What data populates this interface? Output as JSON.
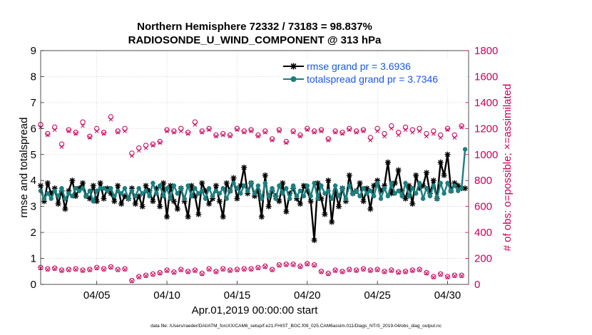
{
  "chart_data": {
    "type": "line",
    "title_line1": "Northern Hemisphere 72332 / 73183 = 98.837%",
    "title_line2": "RADIOSONDE_U_WIND_COMPONENT @ 313 hPa",
    "xlabel": "Apr.01,2019 00:00:00 start",
    "ylabel_left": "rmse and totalspread",
    "ylabel_right": "# of obs: o=possible; ×=assimilated",
    "footer": "data file: /Users/raeder/DAI/ATM_forcXX/CAM6_setup/f.e21.FHIST_BGC.f09_025.CAM6assim.011/Diags_NTrS_2019-04/obs_diag_output.nc",
    "xlim": [
      1,
      31.5
    ],
    "ylim_left": [
      0,
      9
    ],
    "ylim_right": [
      0,
      1800
    ],
    "x_ticks": [
      5,
      10,
      15,
      20,
      25,
      30
    ],
    "x_tick_labels": [
      "04/05",
      "04/10",
      "04/15",
      "04/20",
      "04/25",
      "04/30"
    ],
    "y_left_ticks": [
      "0",
      "1",
      "2",
      "3",
      "4",
      "5",
      "6",
      "7",
      "8",
      "9"
    ],
    "y_right_ticks": [
      "0",
      "200",
      "400",
      "600",
      "800",
      "1000",
      "1200",
      "1400",
      "1600",
      "1800"
    ],
    "legend": [
      {
        "label": "rmse grand pr = 3.6936",
        "color": "#000000"
      },
      {
        "label": "totalspread grand pr = 3.7346",
        "color": "#1a7f7f"
      }
    ],
    "series": [
      {
        "name": "rmse",
        "axis": "left",
        "color": "#000000",
        "x": [
          1.0,
          1.25,
          1.5,
          1.75,
          2.0,
          2.25,
          2.5,
          2.75,
          3.0,
          3.25,
          3.5,
          3.75,
          4.0,
          4.25,
          4.5,
          4.75,
          5.0,
          5.25,
          5.5,
          5.75,
          6.0,
          6.25,
          6.5,
          6.75,
          7.0,
          7.25,
          7.5,
          7.75,
          8.0,
          8.25,
          8.5,
          8.75,
          9.0,
          9.25,
          9.5,
          9.75,
          10.0,
          10.25,
          10.5,
          10.75,
          11.0,
          11.25,
          11.5,
          11.75,
          12.0,
          12.25,
          12.5,
          12.75,
          13.0,
          13.25,
          13.5,
          13.75,
          14.0,
          14.25,
          14.5,
          14.75,
          15.0,
          15.25,
          15.5,
          15.75,
          16.0,
          16.25,
          16.5,
          16.75,
          17.0,
          17.25,
          17.5,
          17.75,
          18.0,
          18.25,
          18.5,
          18.75,
          19.0,
          19.25,
          19.5,
          19.75,
          20.0,
          20.25,
          20.5,
          20.75,
          21.0,
          21.25,
          21.5,
          21.75,
          22.0,
          22.25,
          22.5,
          22.75,
          23.0,
          23.25,
          23.5,
          23.75,
          24.0,
          24.25,
          24.5,
          24.75,
          25.0,
          25.25,
          25.5,
          25.75,
          26.0,
          26.25,
          26.5,
          26.75,
          27.0,
          27.25,
          27.5,
          27.75,
          28.0,
          28.25,
          28.5,
          28.75,
          29.0,
          29.25,
          29.5,
          29.75,
          30.0,
          30.25,
          30.5,
          30.75,
          31.0,
          31.25
        ],
        "y": [
          3.8,
          3.2,
          3.9,
          3.5,
          3.7,
          3.1,
          3.6,
          2.9,
          3.6,
          4.0,
          3.4,
          3.7,
          3.9,
          3.4,
          3.3,
          3.8,
          3.2,
          3.9,
          3.3,
          3.7,
          3.5,
          3.2,
          3.8,
          3.1,
          3.4,
          3.3,
          3.7,
          3.1,
          3.4,
          3.0,
          3.8,
          3.6,
          3.2,
          3.7,
          3.0,
          3.9,
          2.6,
          3.8,
          3.2,
          2.9,
          3.7,
          3.2,
          2.6,
          3.8,
          3.4,
          2.7,
          3.9,
          3.6,
          3.1,
          3.3,
          3.8,
          3.2,
          2.6,
          3.9,
          3.6,
          4.1,
          3.3,
          3.8,
          4.5,
          3.5,
          3.9,
          3.4,
          3.6,
          2.6,
          4.2,
          3.0,
          3.6,
          3.4,
          3.2,
          3.9,
          2.8,
          3.5,
          3.7,
          3.3,
          3.1,
          3.8,
          3.6,
          3.2,
          1.7,
          3.9,
          3.3,
          2.7,
          4.0,
          2.4,
          3.6,
          3.0,
          3.7,
          3.2,
          4.2,
          3.5,
          3.6,
          3.9,
          3.2,
          3.7,
          2.9,
          3.8,
          4.0,
          3.6,
          3.8,
          4.7,
          3.5,
          3.9,
          4.4,
          3.6,
          3.3,
          3.8,
          3.1,
          4.2,
          3.7,
          3.8,
          4.3,
          3.5,
          4.0,
          3.3,
          4.7,
          4.2,
          5.0,
          3.6,
          3.9,
          3.8,
          3.7,
          3.7
        ]
      },
      {
        "name": "totalspread",
        "axis": "left",
        "color": "#1a7f7f",
        "x": [
          1.0,
          1.25,
          1.5,
          1.75,
          2.0,
          2.25,
          2.5,
          2.75,
          3.0,
          3.25,
          3.5,
          3.75,
          4.0,
          4.25,
          4.5,
          4.75,
          5.0,
          5.25,
          5.5,
          5.75,
          6.0,
          6.25,
          6.5,
          6.75,
          7.0,
          7.25,
          7.5,
          7.75,
          8.0,
          8.25,
          8.5,
          8.75,
          9.0,
          9.25,
          9.5,
          9.75,
          10.0,
          10.25,
          10.5,
          10.75,
          11.0,
          11.25,
          11.5,
          11.75,
          12.0,
          12.25,
          12.5,
          12.75,
          13.0,
          13.25,
          13.5,
          13.75,
          14.0,
          14.25,
          14.5,
          14.75,
          15.0,
          15.25,
          15.5,
          15.75,
          16.0,
          16.25,
          16.5,
          16.75,
          17.0,
          17.25,
          17.5,
          17.75,
          18.0,
          18.25,
          18.5,
          18.75,
          19.0,
          19.25,
          19.5,
          19.75,
          20.0,
          20.25,
          20.5,
          20.75,
          21.0,
          21.25,
          21.5,
          21.75,
          22.0,
          22.25,
          22.5,
          22.75,
          23.0,
          23.25,
          23.5,
          23.75,
          24.0,
          24.25,
          24.5,
          24.75,
          25.0,
          25.25,
          25.5,
          25.75,
          26.0,
          26.25,
          26.5,
          26.75,
          27.0,
          27.25,
          27.5,
          27.75,
          28.0,
          28.25,
          28.5,
          28.75,
          29.0,
          29.25,
          29.5,
          29.75,
          30.0,
          30.25,
          30.5,
          30.75,
          31.0,
          31.25
        ],
        "y": [
          3.6,
          3.3,
          3.5,
          3.3,
          3.6,
          3.4,
          3.7,
          3.3,
          3.5,
          3.4,
          3.7,
          3.6,
          3.7,
          3.4,
          3.6,
          3.2,
          3.6,
          3.7,
          3.7,
          3.6,
          3.7,
          3.4,
          3.6,
          3.5,
          3.7,
          3.3,
          3.6,
          3.4,
          3.7,
          3.5,
          3.6,
          3.4,
          3.9,
          3.5,
          3.8,
          3.4,
          3.7,
          3.3,
          3.8,
          3.5,
          3.7,
          3.3,
          3.8,
          3.4,
          3.7,
          3.5,
          3.6,
          3.3,
          3.7,
          3.4,
          3.6,
          3.5,
          3.7,
          3.3,
          3.6,
          3.9,
          3.7,
          3.5,
          3.8,
          3.6,
          3.9,
          3.5,
          3.8,
          3.3,
          3.9,
          3.4,
          3.7,
          3.3,
          3.8,
          3.5,
          3.7,
          3.3,
          3.8,
          3.4,
          3.6,
          3.4,
          3.8,
          3.4,
          3.9,
          3.3,
          3.8,
          3.5,
          3.6,
          3.3,
          3.8,
          3.4,
          3.7,
          3.3,
          3.8,
          3.5,
          3.6,
          3.4,
          3.7,
          3.5,
          3.6,
          3.4,
          3.9,
          3.3,
          3.7,
          3.4,
          3.9,
          3.5,
          3.6,
          3.4,
          3.9,
          3.4,
          3.7,
          3.5,
          3.9,
          3.3,
          3.7,
          3.4,
          3.8,
          3.3,
          3.9,
          3.5,
          3.9,
          3.6,
          3.8,
          3.6,
          3.7,
          5.2
        ]
      },
      {
        "name": "obs possible (day)",
        "axis": "right",
        "color": "#c8005a",
        "marker": "o",
        "x": [
          1.0,
          1.5,
          2.0,
          2.5,
          3.0,
          3.5,
          4.0,
          4.5,
          5.0,
          5.5,
          6.0,
          6.5,
          7.0,
          7.5,
          8.0,
          8.5,
          9.0,
          9.5,
          10.0,
          10.5,
          11.0,
          11.5,
          12.0,
          12.5,
          13.0,
          13.5,
          14.0,
          14.5,
          15.0,
          15.5,
          16.0,
          16.5,
          17.0,
          17.5,
          18.0,
          18.5,
          19.0,
          19.5,
          20.0,
          20.5,
          21.0,
          21.5,
          22.0,
          22.5,
          23.0,
          23.5,
          24.0,
          24.5,
          25.0,
          25.5,
          26.0,
          26.5,
          27.0,
          27.5,
          28.0,
          28.5,
          29.0,
          29.5,
          30.0,
          30.5,
          31.0
        ],
        "y": [
          1230,
          1160,
          1210,
          1080,
          1190,
          1170,
          1250,
          1140,
          1200,
          1170,
          1290,
          1180,
          1200,
          1010,
          1050,
          1070,
          1080,
          1100,
          1190,
          1180,
          1200,
          1170,
          1250,
          1180,
          1200,
          1150,
          1160,
          1150,
          1200,
          1180,
          1190,
          1150,
          1180,
          1120,
          1190,
          1100,
          1180,
          1150,
          1200,
          1180,
          1190,
          1120,
          1180,
          1170,
          1200,
          1180,
          1190,
          1130,
          1200,
          1160,
          1220,
          1170,
          1210,
          1190,
          1200,
          1160,
          1180,
          1150,
          1200,
          1150,
          1220
        ]
      },
      {
        "name": "obs assimilated (day)",
        "axis": "right",
        "color": "#c8005a",
        "marker": "x",
        "x": [
          1.0,
          1.5,
          2.0,
          2.5,
          3.0,
          3.5,
          4.0,
          4.5,
          5.0,
          5.5,
          6.0,
          6.5,
          7.0,
          7.5,
          8.0,
          8.5,
          9.0,
          9.5,
          10.0,
          10.5,
          11.0,
          11.5,
          12.0,
          12.5,
          13.0,
          13.5,
          14.0,
          14.5,
          15.0,
          15.5,
          16.0,
          16.5,
          17.0,
          17.5,
          18.0,
          18.5,
          19.0,
          19.5,
          20.0,
          20.5,
          21.0,
          21.5,
          22.0,
          22.5,
          23.0,
          23.5,
          24.0,
          24.5,
          25.0,
          25.5,
          26.0,
          26.5,
          27.0,
          27.5,
          28.0,
          28.5,
          29.0,
          29.5,
          30.0,
          30.5,
          31.0
        ],
        "y": [
          1210,
          1150,
          1190,
          1060,
          1180,
          1160,
          1220,
          1130,
          1180,
          1160,
          1270,
          1170,
          1180,
          990,
          1030,
          1050,
          1070,
          1090,
          1180,
          1170,
          1180,
          1160,
          1230,
          1170,
          1190,
          1140,
          1150,
          1140,
          1190,
          1170,
          1180,
          1140,
          1170,
          1110,
          1180,
          1090,
          1170,
          1140,
          1190,
          1170,
          1180,
          1110,
          1170,
          1160,
          1190,
          1170,
          1180,
          1110,
          1180,
          1140,
          1200,
          1150,
          1190,
          1170,
          1180,
          1140,
          1160,
          1130,
          1190,
          1130,
          1210
        ]
      },
      {
        "name": "obs possible (night)",
        "axis": "right",
        "color": "#c8005a",
        "marker": "o",
        "x": [
          1.0,
          1.5,
          2.0,
          2.5,
          3.0,
          3.5,
          4.0,
          4.5,
          5.0,
          5.5,
          6.0,
          6.5,
          7.0,
          7.5,
          8.0,
          8.5,
          9.0,
          9.5,
          10.0,
          10.5,
          11.0,
          11.5,
          12.0,
          12.5,
          13.0,
          13.5,
          14.0,
          14.5,
          15.0,
          15.5,
          16.0,
          16.5,
          17.0,
          17.5,
          18.0,
          18.5,
          19.0,
          19.5,
          20.0,
          20.5,
          21.0,
          21.5,
          22.0,
          22.5,
          23.0,
          23.5,
          24.0,
          24.5,
          25.0,
          25.5,
          26.0,
          26.5,
          27.0,
          27.5,
          28.0,
          28.5,
          29.0,
          29.5,
          30.0,
          30.5,
          31.0
        ],
        "y": [
          130,
          120,
          125,
          110,
          115,
          120,
          110,
          115,
          130,
          120,
          135,
          115,
          120,
          30,
          60,
          70,
          80,
          90,
          110,
          95,
          115,
          100,
          110,
          85,
          120,
          100,
          120,
          110,
          115,
          120,
          120,
          130,
          140,
          115,
          150,
          155,
          155,
          140,
          160,
          150,
          100,
          85,
          110,
          100,
          115,
          110,
          120,
          110,
          115,
          100,
          110,
          95,
          100,
          110,
          115,
          90,
          60,
          80,
          60,
          70,
          70
        ]
      },
      {
        "name": "obs assimilated (night)",
        "axis": "right",
        "color": "#c8005a",
        "marker": "x",
        "x": [
          1.0,
          1.5,
          2.0,
          2.5,
          3.0,
          3.5,
          4.0,
          4.5,
          5.0,
          5.5,
          6.0,
          6.5,
          7.0,
          7.5,
          8.0,
          8.5,
          9.0,
          9.5,
          10.0,
          10.5,
          11.0,
          11.5,
          12.0,
          12.5,
          13.0,
          13.5,
          14.0,
          14.5,
          15.0,
          15.5,
          16.0,
          16.5,
          17.0,
          17.5,
          18.0,
          18.5,
          19.0,
          19.5,
          20.0,
          20.5,
          21.0,
          21.5,
          22.0,
          22.5,
          23.0,
          23.5,
          24.0,
          24.5,
          25.0,
          25.5,
          26.0,
          26.5,
          27.0,
          27.5,
          28.0,
          28.5,
          29.0,
          29.5,
          30.0,
          30.5,
          31.0
        ],
        "y": [
          125,
          115,
          120,
          105,
          110,
          115,
          105,
          110,
          125,
          115,
          130,
          110,
          115,
          25,
          55,
          65,
          75,
          85,
          105,
          90,
          110,
          95,
          105,
          80,
          115,
          95,
          115,
          105,
          110,
          115,
          115,
          125,
          135,
          110,
          145,
          150,
          150,
          135,
          155,
          145,
          95,
          80,
          105,
          95,
          110,
          105,
          115,
          105,
          110,
          95,
          105,
          90,
          95,
          105,
          110,
          85,
          55,
          75,
          55,
          65,
          65
        ]
      }
    ]
  }
}
